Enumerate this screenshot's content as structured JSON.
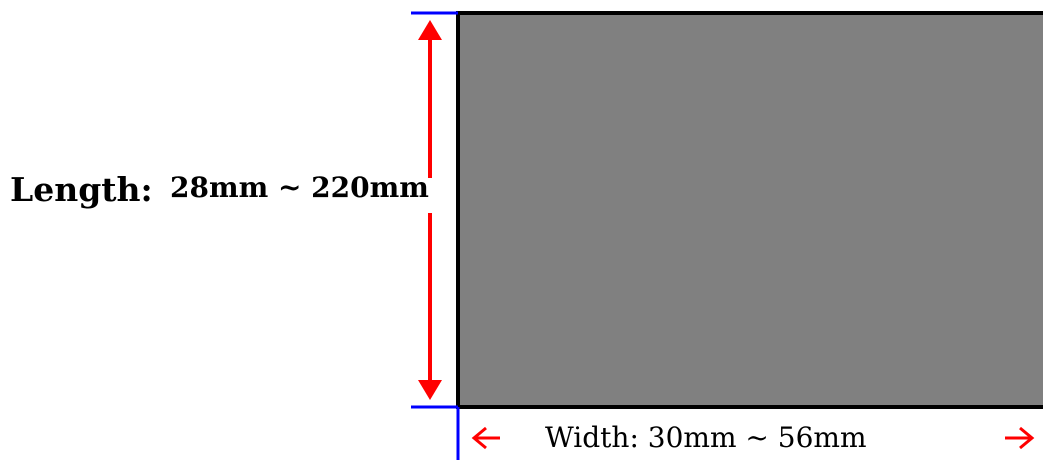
{
  "dimensions": {
    "length": {
      "label": "Length:",
      "range": "28mm ~  220mm"
    },
    "width": {
      "label": "Width:",
      "range": "30mm  ~  56mm"
    }
  },
  "colors": {
    "panel_fill": "#808080",
    "panel_border": "#000000",
    "arrow": "#ff0000",
    "guide": "#0000ff"
  }
}
